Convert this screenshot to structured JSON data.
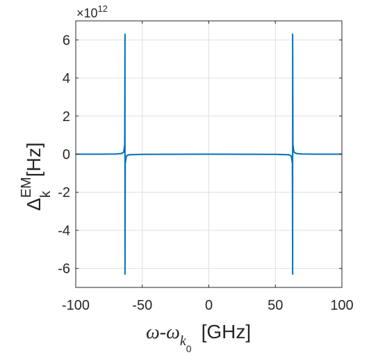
{
  "chart_data": {
    "type": "line",
    "xlabel": {
      "main": "ω-ω",
      "sub": "k",
      "subsub": "0",
      "unit": "[GHz]"
    },
    "ylabel": {
      "main": "Δ",
      "sub": "k",
      "sup": "EM",
      "unit": "[Hz]"
    },
    "y_exponent": {
      "base": "×10",
      "power": "12"
    },
    "xlim": [
      -100,
      100
    ],
    "ylim": [
      -7,
      7
    ],
    "xticks": [
      -100,
      -50,
      0,
      50,
      100
    ],
    "xtick_labels": [
      "-100",
      "-50",
      "0",
      "50",
      "100"
    ],
    "yticks": [
      -6,
      -4,
      -2,
      0,
      2,
      4,
      6
    ],
    "ytick_labels": [
      "-6",
      "-4",
      "-2",
      "0",
      "2",
      "4",
      "6"
    ],
    "grid": true,
    "series": [
      {
        "color": "#0072BD",
        "x": [
          -100,
          -80,
          -70,
          -66,
          -64,
          -63.2,
          -63.0,
          -63.0,
          -62.8,
          -62.0,
          -60,
          -50,
          -25,
          0,
          25,
          50,
          60,
          62.0,
          62.8,
          63.0,
          63.0,
          63.2,
          64,
          66,
          70,
          80,
          100
        ],
        "y": [
          0.0,
          0.0,
          0.01,
          0.03,
          0.1,
          0.5,
          6.3,
          -6.3,
          -0.5,
          -0.1,
          -0.03,
          -0.01,
          -0.005,
          0.0,
          -0.005,
          -0.01,
          -0.03,
          -0.1,
          -0.5,
          -6.3,
          6.3,
          0.5,
          0.1,
          0.03,
          0.01,
          0.0,
          0.0
        ]
      }
    ]
  }
}
